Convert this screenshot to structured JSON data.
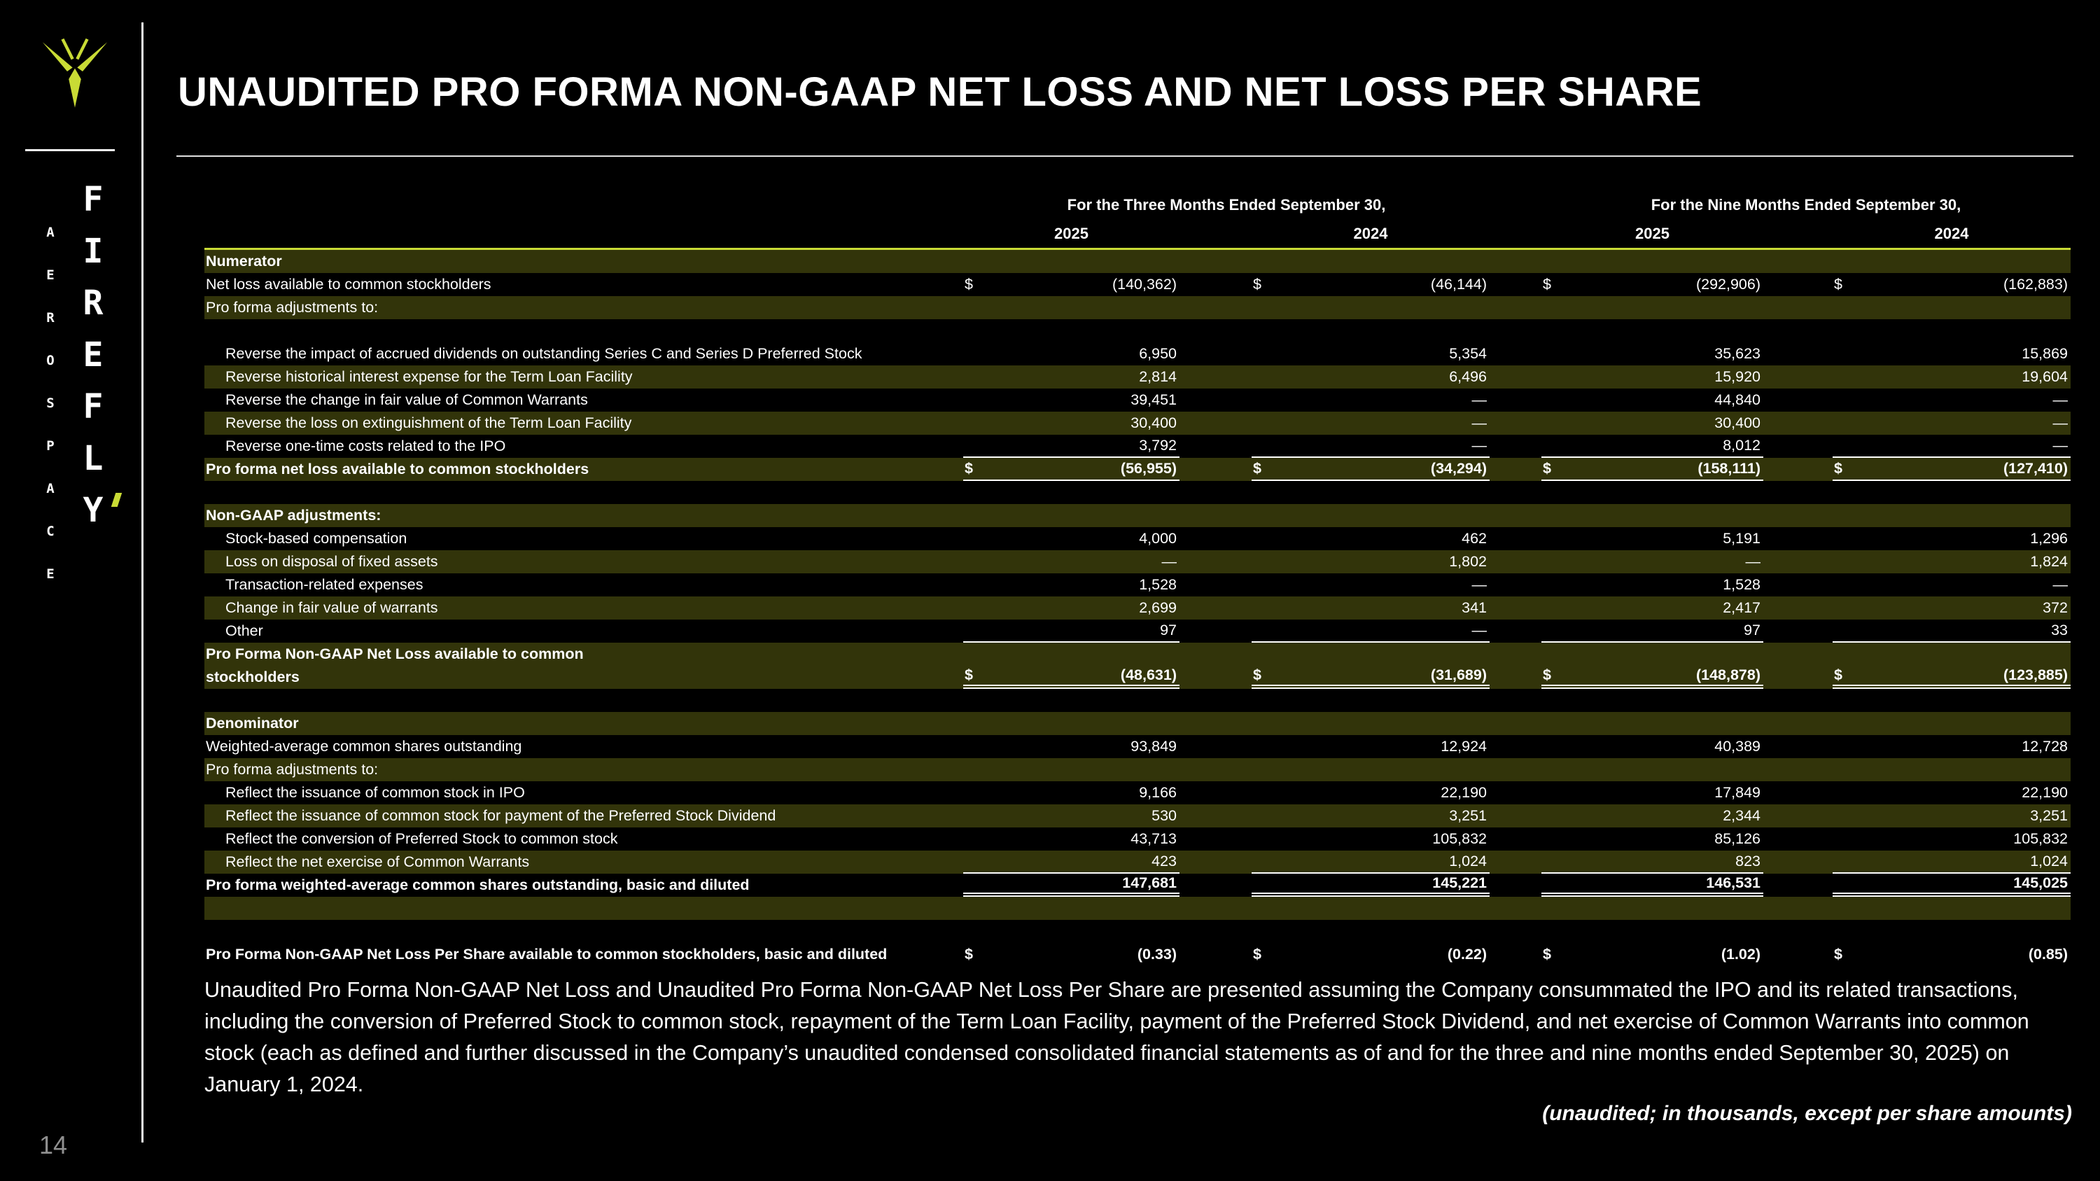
{
  "title": "UNAUDITED PRO FORMA NON-GAAP NET LOSS AND NET LOSS PER SHARE",
  "page_number": "14",
  "sidebar": {
    "logo_icon": "firefly-icon",
    "wordmark": [
      "F",
      "I",
      "R",
      "E",
      "F",
      "L",
      "Y"
    ],
    "vertical_text": [
      "A",
      "E",
      "R",
      "O",
      "S",
      "P",
      "A",
      "C",
      "E"
    ]
  },
  "colors": {
    "accent": "#c9db35",
    "row_highlight": "#32340a",
    "background": "#000000",
    "text": "#ffffff"
  },
  "table": {
    "currency": "$",
    "col_groups": [
      "For the Three Months Ended September 30,",
      "For the Nine Months Ended September 30,"
    ],
    "years": [
      "2025",
      "2024",
      "2025",
      "2024"
    ],
    "rows": [
      {
        "label": "Numerator",
        "hl": true,
        "bold": true
      },
      {
        "label": "Net loss available to common stockholders",
        "dollar": true,
        "values": [
          "(140,362)",
          "(46,144)",
          "(292,906)",
          "(162,883)"
        ]
      },
      {
        "label": "Pro forma adjustments to:",
        "hl": true
      },
      {
        "spacer": true
      },
      {
        "label": "Reverse the impact of accrued dividends on outstanding Series C and Series D Preferred Stock",
        "indent": true,
        "values": [
          "6,950",
          "5,354",
          "35,623",
          "15,869"
        ]
      },
      {
        "label": "Reverse historical interest expense for the Term Loan Facility",
        "indent": true,
        "hl": true,
        "values": [
          "2,814",
          "6,496",
          "15,920",
          "19,604"
        ]
      },
      {
        "label": "Reverse the change in fair value of Common Warrants",
        "indent": true,
        "values": [
          "39,451",
          "—",
          "44,840",
          "—"
        ]
      },
      {
        "label": "Reverse the loss on extinguishment of the Term Loan Facility",
        "indent": true,
        "hl": true,
        "values": [
          "30,400",
          "—",
          "30,400",
          "—"
        ]
      },
      {
        "label": "Reverse one-time costs related to the IPO",
        "indent": true,
        "values": [
          "3,792",
          "—",
          "8,012",
          "—"
        ],
        "rb": true
      },
      {
        "label": "Pro forma net loss available to common stockholders",
        "hl": true,
        "bold": true,
        "dollar": true,
        "values": [
          "(56,955)",
          "(34,294)",
          "(158,111)",
          "(127,410)"
        ],
        "rb": true
      },
      {
        "spacer": true
      },
      {
        "label": "Non-GAAP adjustments:",
        "hl": true,
        "bold": true
      },
      {
        "label": "Stock-based compensation",
        "indent": true,
        "values": [
          "4,000",
          "462",
          "5,191",
          "1,296"
        ]
      },
      {
        "label": "Loss on disposal of fixed assets",
        "indent": true,
        "hl": true,
        "values": [
          "—",
          "1,802",
          "—",
          "1,824"
        ]
      },
      {
        "label": "Transaction-related expenses",
        "indent": true,
        "values": [
          "1,528",
          "—",
          "1,528",
          "—"
        ]
      },
      {
        "label": "Change in fair value of warrants",
        "indent": true,
        "hl": true,
        "values": [
          "2,699",
          "341",
          "2,417",
          "372"
        ]
      },
      {
        "label": "Other",
        "indent": true,
        "values": [
          "97",
          "—",
          "97",
          "33"
        ],
        "rb": true
      },
      {
        "label": "Pro Forma Non-GAAP Net Loss available to common",
        "hl": true,
        "bold": true
      },
      {
        "label": "stockholders",
        "hl": true,
        "bold": true,
        "dollar": true,
        "values": [
          "(48,631)",
          "(31,689)",
          "(148,878)",
          "(123,885)"
        ],
        "rdb": true
      },
      {
        "spacer": true
      },
      {
        "label": "Denominator",
        "hl": true,
        "bold": true
      },
      {
        "label": "Weighted-average common shares outstanding",
        "values": [
          "93,849",
          "12,924",
          "40,389",
          "12,728"
        ]
      },
      {
        "label": "Pro forma adjustments to:",
        "hl": true
      },
      {
        "label": "Reflect the issuance of common stock in IPO",
        "indent": true,
        "values": [
          "9,166",
          "22,190",
          "17,849",
          "22,190"
        ]
      },
      {
        "label": "Reflect the issuance of common stock for payment of the Preferred Stock Dividend",
        "indent": true,
        "hl": true,
        "values": [
          "530",
          "3,251",
          "2,344",
          "3,251"
        ]
      },
      {
        "label": "Reflect the conversion of Preferred Stock to common stock",
        "indent": true,
        "values": [
          "43,713",
          "105,832",
          "85,126",
          "105,832"
        ]
      },
      {
        "label": "Reflect the net exercise of Common Warrants",
        "indent": true,
        "hl": true,
        "values": [
          "423",
          "1,024",
          "823",
          "1,024"
        ],
        "rb": true
      },
      {
        "label": "Pro forma weighted-average common shares outstanding, basic and diluted",
        "bold": true,
        "values": [
          "147,681",
          "145,221",
          "146,531",
          "145,025"
        ],
        "rdb": true
      },
      {
        "spacer": true,
        "hl": true
      },
      {
        "spacer": true
      },
      {
        "label": "Pro Forma Non-GAAP Net Loss Per Share available to common stockholders, basic and diluted",
        "bold": true,
        "dollar": true,
        "values": [
          "(0.33)",
          "(0.22)",
          "(1.02)",
          "(0.85)"
        ]
      }
    ]
  },
  "footnote": "Unaudited Pro Forma Non-GAAP Net Loss and Unaudited Pro Forma Non-GAAP Net Loss Per Share are presented assuming the Company consummated the IPO and its related transactions, including the conversion of Preferred Stock to common stock, repayment of the Term Loan Facility, payment of the Preferred Stock Dividend, and net exercise of Common Warrants into common stock (each as defined and further discussed in the Company’s unaudited condensed consolidated financial statements as of and for the three and nine months ended September 30, 2025) on January 1, 2024.",
  "units_note": "(unaudited; in thousands, except per share amounts)"
}
